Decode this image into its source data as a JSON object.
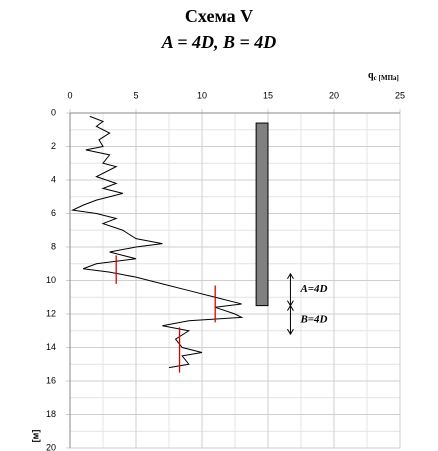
{
  "chart_data": {
    "type": "profile",
    "title": "Схема V",
    "subtitle": "A = 4D, B = 4D",
    "xlabel": {
      "symbol": "q",
      "subscript": "c",
      "unit": "[МПа]"
    },
    "ylabel": "[м]",
    "xlim": [
      0,
      25
    ],
    "xticks": [
      0,
      5,
      10,
      15,
      20,
      25
    ],
    "x_minor_ticks": [
      2.5,
      7.5,
      12.5,
      17.5,
      22.5
    ],
    "ylim": [
      0,
      20
    ],
    "yticks": [
      0,
      2,
      4,
      6,
      8,
      10,
      12,
      14,
      16,
      18,
      20
    ],
    "y_minor_ticks": [
      1,
      3,
      5,
      7,
      9,
      11,
      13,
      15,
      17,
      19
    ],
    "grid": true,
    "y_inverted": true,
    "series": [
      {
        "color": "#000000",
        "x": [
          1.5,
          2.5,
          2,
          3,
          2.2,
          2.5,
          1.2,
          3,
          2.5,
          3.5,
          2,
          3.5,
          2.5,
          4,
          2,
          1,
          0.2,
          2,
          3.5,
          2.5,
          4,
          5,
          7,
          5,
          3,
          5,
          2,
          1,
          3,
          5,
          7,
          9,
          11,
          13,
          11,
          12.5,
          13,
          9,
          7,
          9,
          8,
          8.5,
          10,
          8.5,
          9,
          7.5
        ],
        "y": [
          0.2,
          0.5,
          0.8,
          1.2,
          1.6,
          2,
          2.2,
          2.5,
          3,
          3.2,
          3.8,
          4.2,
          4.5,
          4.8,
          5.2,
          5.5,
          5.8,
          6,
          6.3,
          6.6,
          7,
          7.5,
          7.8,
          8,
          8.3,
          8.7,
          9,
          9.3,
          9.5,
          9.8,
          10.2,
          10.6,
          11,
          11.4,
          11.6,
          12,
          12.2,
          12.4,
          12.7,
          13,
          13.5,
          14,
          14.3,
          14.5,
          15,
          15.2
        ]
      }
    ],
    "red_lines": [
      {
        "x": 3.5,
        "from": 8.5,
        "to": 10.2
      },
      {
        "x": 11,
        "from": 10.3,
        "to": 12.5
      },
      {
        "x": 8.3,
        "from": 12.8,
        "to": 15.5
      }
    ],
    "pile": {
      "x_from": 14.1,
      "x_to": 15,
      "top": 0.6,
      "bottom": 11.5,
      "color": "#808080"
    },
    "zones": [
      {
        "label": "A=4D",
        "from": 9.6,
        "to": 11.5
      },
      {
        "label": "B=4D",
        "from": 11.5,
        "to": 13.2
      }
    ],
    "zone_x": 16.7
  }
}
